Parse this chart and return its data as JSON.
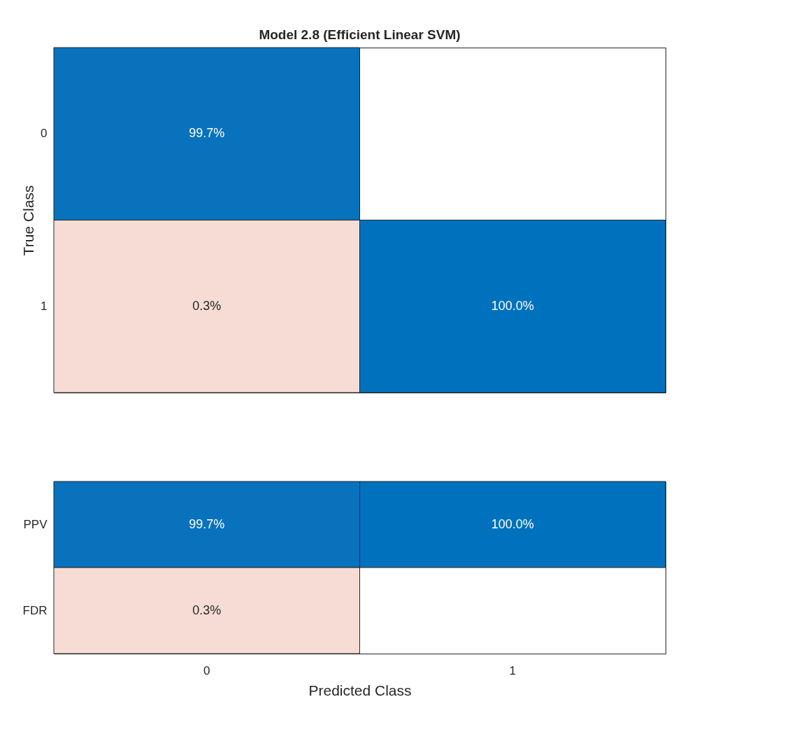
{
  "chart_data": [
    {
      "type": "heatmap",
      "title": "Model 2.8 (Efficient Linear SVM)",
      "ylabel": "True Class",
      "categories": [
        "0",
        "1"
      ],
      "y_categories": [
        "0",
        "1"
      ],
      "cells": [
        [
          99.7,
          null
        ],
        [
          0.3,
          100.0
        ]
      ],
      "cell_labels": [
        [
          "99.7%",
          null
        ],
        [
          "0.3%",
          "100.0%"
        ]
      ],
      "tick_labels": "y"
    },
    {
      "type": "heatmap",
      "xlabel": "Predicted Class",
      "categories": [
        "0",
        "1"
      ],
      "y_categories": [
        "PPV",
        "FDR"
      ],
      "cells": [
        [
          99.7,
          100.0
        ],
        [
          0.3,
          null
        ]
      ],
      "cell_labels": [
        [
          "99.7%",
          "100.0%"
        ],
        [
          "0.3%",
          null
        ]
      ]
    }
  ]
}
